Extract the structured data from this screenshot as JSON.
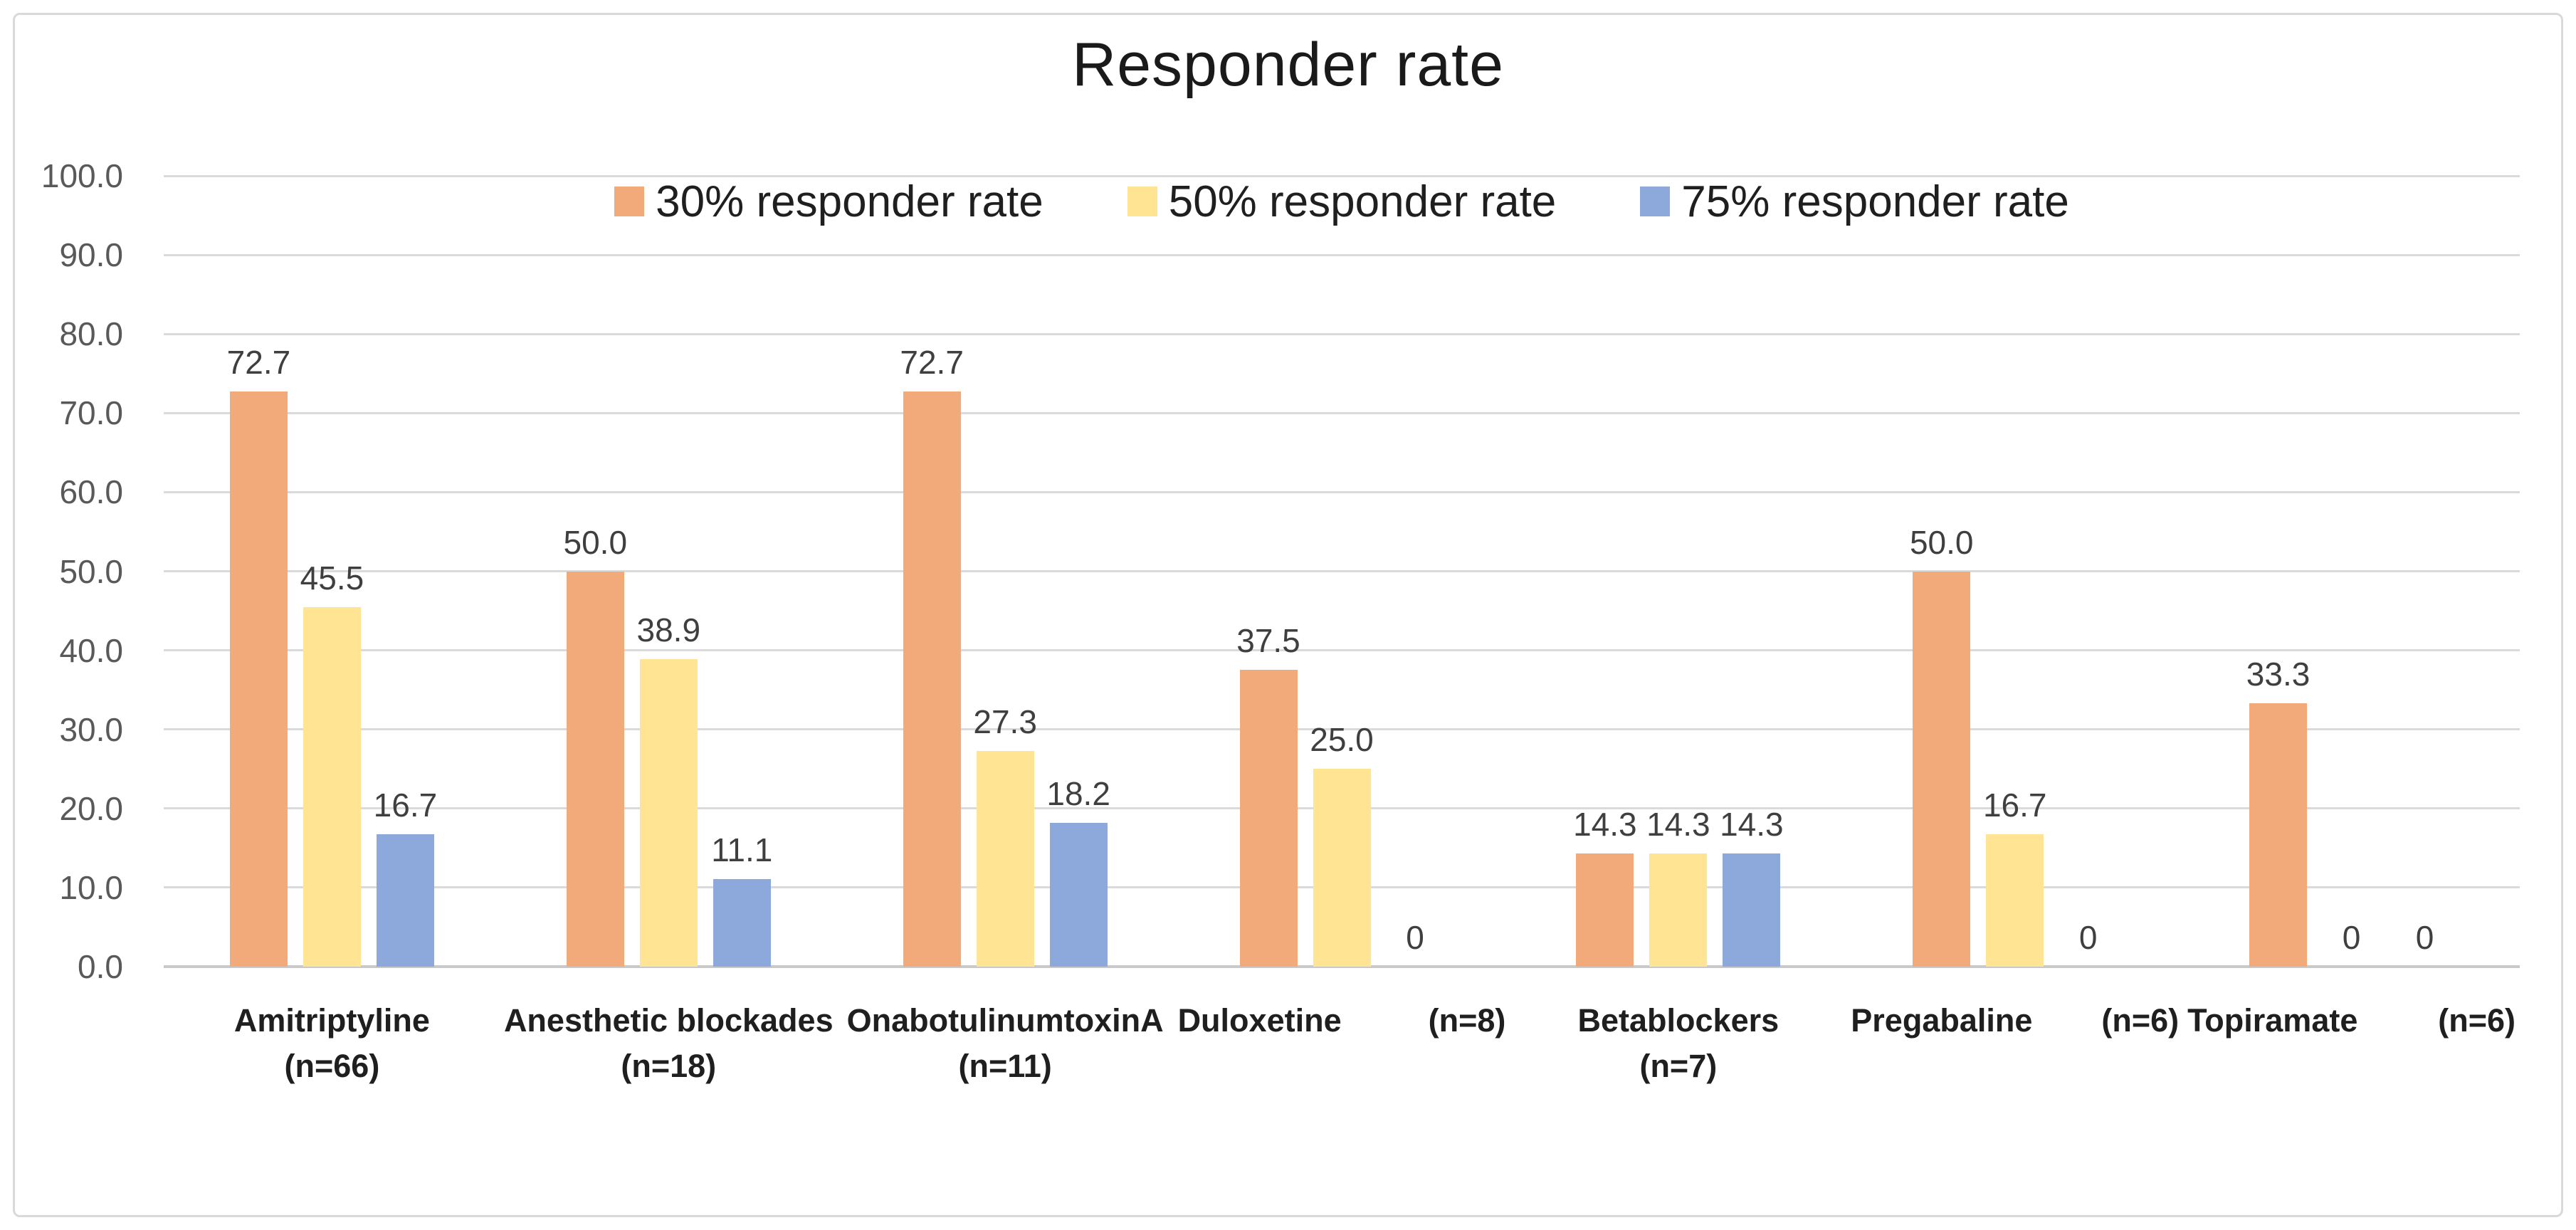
{
  "title": "Responder rate",
  "chart_data": {
    "type": "bar",
    "title": "Responder rate",
    "xlabel": "",
    "ylabel": "",
    "ylim": [
      0,
      100
    ],
    "yticks": [
      "100.0",
      "90.0",
      "80.0",
      "70.0",
      "60.0",
      "50.0",
      "40.0",
      "30.0",
      "20.0",
      "10.0",
      "0.0"
    ],
    "grid": true,
    "legend_position": "top-inside",
    "categories": [
      {
        "name": "Amitriptyline",
        "n": "(n=66)",
        "n_on_same_line": false
      },
      {
        "name": "Anesthetic blockades",
        "n": "(n=18)",
        "n_on_same_line": false
      },
      {
        "name": "OnabotulinumtoxinA",
        "n": "(n=11)",
        "n_on_same_line": false
      },
      {
        "name": "Duloxetine",
        "n": "(n=8)",
        "n_on_same_line": true
      },
      {
        "name": "Betablockers",
        "n": "(n=7)",
        "n_on_same_line": false
      },
      {
        "name": "Pregabaline",
        "n": "(n=6)",
        "n_on_same_line": true
      },
      {
        "name": "Topiramate",
        "n": "(n=6)",
        "n_on_same_line": true
      }
    ],
    "series": [
      {
        "name": "30% responder rate",
        "color": "#F3AA7B",
        "values": [
          72.7,
          50.0,
          72.7,
          37.5,
          14.3,
          50.0,
          33.3
        ],
        "labels": [
          "72.7",
          "50.0",
          "72.7",
          "37.5",
          "14.3",
          "50.0",
          "33.3"
        ]
      },
      {
        "name": "50% responder rate",
        "color": "#FFE493",
        "values": [
          45.5,
          38.9,
          27.3,
          25.0,
          14.3,
          16.7,
          0
        ],
        "labels": [
          "45.5",
          "38.9",
          "27.3",
          "25.0",
          "14.3",
          "16.7",
          "0"
        ]
      },
      {
        "name": "75% responder rate",
        "color": "#8DA8DB",
        "values": [
          16.7,
          11.1,
          18.2,
          0,
          14.3,
          0,
          0
        ],
        "labels": [
          "16.7",
          "11.1",
          "18.2",
          "0",
          "14.3",
          "0",
          "0"
        ]
      }
    ]
  },
  "colors": {
    "background": "#FFFFFF",
    "border": "#D9D9D9",
    "gridline": "#DADADA",
    "axis_line": "#C9C9C9",
    "tick_text": "#595959",
    "data_label_text": "#3F3F3F",
    "category_text": "#1F1F1F",
    "title_text": "#1A1A1A"
  }
}
